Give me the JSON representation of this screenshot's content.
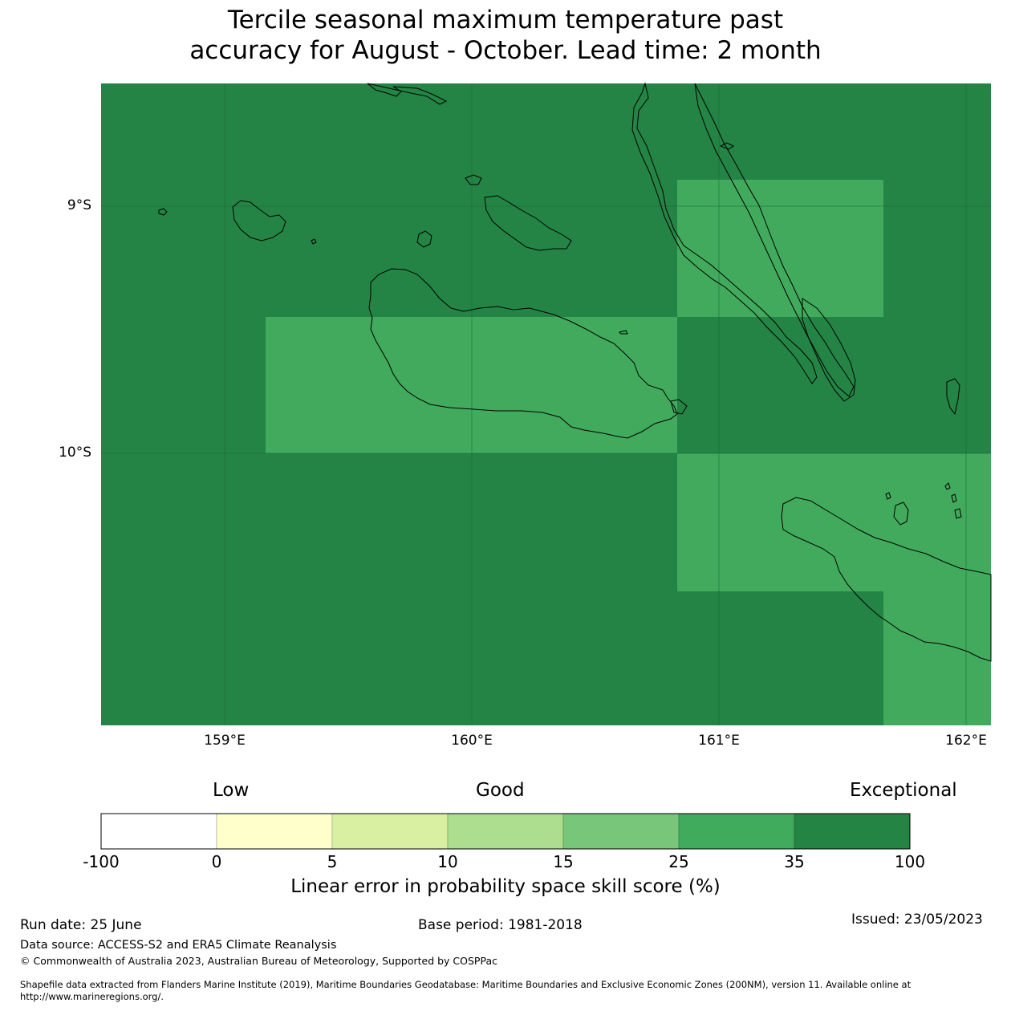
{
  "title": {
    "line1": "Tercile seasonal maximum temperature past",
    "line2": "accuracy for August - October. Lead time: 2 month"
  },
  "map": {
    "lat_labels": [
      "9°S",
      "10°S"
    ],
    "lon_labels": [
      "159°E",
      "160°E",
      "161°E",
      "162°E"
    ],
    "lon_range": [
      158.5,
      162.1
    ],
    "lat_range": [
      -8.5,
      -11.1
    ],
    "colors": {
      "exceptional": "#248445",
      "good_high": "#41aa5d",
      "coastline": "#000000",
      "gridline": "#1b6534"
    },
    "regions": [
      {
        "lon": [
          159.17,
          160.83
        ],
        "lat": [
          -9.45,
          -10.0
        ],
        "category": "25 to 35"
      },
      {
        "lon": [
          160.83,
          161.67
        ],
        "lat": [
          -8.9,
          -9.45
        ],
        "category": "25 to 35"
      },
      {
        "lon": [
          160.83,
          162.1
        ],
        "lat": [
          -10.0,
          -10.55
        ],
        "category": "25 to 35"
      },
      {
        "lon": [
          161.67,
          162.1
        ],
        "lat": [
          -10.55,
          -11.1
        ],
        "category": "25 to 35"
      }
    ],
    "background_category": "35 to 100"
  },
  "colorbar": {
    "categories": {
      "low": "Low",
      "good": "Good",
      "exceptional": "Exceptional"
    },
    "ticks": [
      "-100",
      "0",
      "5",
      "10",
      "15",
      "25",
      "35",
      "100"
    ],
    "colors": [
      "#ffffff",
      "#ffffcc",
      "#d9f0a3",
      "#addd8e",
      "#78c679",
      "#41ab5d",
      "#238443"
    ],
    "label": "Linear error in probability space skill score (%)"
  },
  "footer": {
    "run_date": "Run date: 25 June",
    "base_period": "Base period: 1981-2018",
    "issued": "Issued: 23/05/2023",
    "data_source": "Data source: ACCESS-S2 and ERA5 Climate Reanalysis",
    "copyright": "© Commonwealth of Australia 2023, Australian Bureau of Meteorology, Supported by COSPPac",
    "shapefile_line1": "Shapefile data extracted from Flanders Marine Institute (2019), Maritime Boundaries Geodatabase: Maritime Boundaries and Exclusive Economic Zones (200NM), version 11. Available online at",
    "shapefile_line2": "http://www.marineregions.org/."
  }
}
